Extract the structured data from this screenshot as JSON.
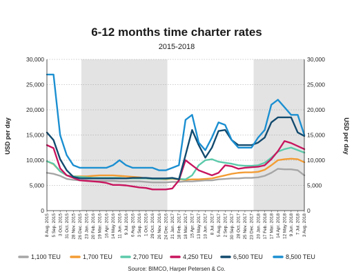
{
  "chart_data": {
    "type": "line",
    "title": "6-12 months time charter rates",
    "subtitle": "2015-2018",
    "ylabel_left": "USD per day",
    "ylabel_right": "USD per day",
    "source": "Source: BIMCO, Harper Petersen & Co.",
    "ylim": [
      0,
      30000
    ],
    "yticks": [
      0,
      5000,
      10000,
      15000,
      20000,
      25000,
      30000
    ],
    "ytick_labels": [
      "0",
      "5,000",
      "10,000",
      "15,000",
      "20,000",
      "25,000",
      "30,000"
    ],
    "grid": "horizontal dotted",
    "legend_placement": "bottom",
    "x_dates": [
      "2015-08-08",
      "2015-09-05",
      "2015-10-03",
      "2015-10-31",
      "2015-11-28",
      "2015-12-26",
      "2016-01-23",
      "2016-02-20",
      "2016-03-19",
      "2016-04-16",
      "2016-05-14",
      "2016-06-11",
      "2016-07-09",
      "2016-08-06",
      "2016-09-03",
      "2016-10-01",
      "2016-10-29",
      "2016-11-26",
      "2016-12-24",
      "2017-01-21",
      "2017-02-18",
      "2017-03-18",
      "2017-04-15",
      "2017-05-13",
      "2017-06-10",
      "2017-07-08",
      "2017-08-05",
      "2017-09-02",
      "2017-09-30",
      "2017-10-28",
      "2017-11-25",
      "2017-12-23",
      "2018-01-20",
      "2018-02-17",
      "2018-03-17",
      "2018-04-14",
      "2018-05-12",
      "2018-06-09",
      "2018-07-07",
      "2018-08-04"
    ],
    "x_tick_labels": [
      "8 Aug. 2015",
      "5 Sep. 2015",
      "3 Oct. 2015",
      "31 Oct. 2015",
      "28 Nov. 2015",
      "26 Dec. 2015",
      "23 Jan. 2016",
      "20 Feb. 2016",
      "19 Mar. 2016",
      "16 Apr. 2016",
      "14 May 2016",
      "11 Jun. 2016",
      "9 Jul. 2016",
      "6 Aug. 2016",
      "3 Sep. 2016",
      "1 Oct. 2016",
      "29 Oct. 2016",
      "26 Nov. 2016",
      "24 Dec. 2016",
      "21 Jan. 2017",
      "18 Feb. 2017",
      "18 Mar. 2017",
      "15 Apr. 2017",
      "13 May 2017",
      "10 Jun. 2017",
      "8 Jul. 2017",
      "5 Aug. 2017",
      "2 Sep. 2017",
      "30 Sep. 2017",
      "28 Oct. 2017",
      "25 Nov. 2017",
      "23 Dec. 2017",
      "20 Jan. 2018",
      "17 Feb. 2018",
      "17 Mar. 2018",
      "14 Apr. 2018",
      "12 May 2018",
      "9 Jun. 2018",
      "7 Jul. 2018",
      "3 Aug. 2018"
    ],
    "shaded_years": [
      {
        "label": "2016",
        "from": "2016-01-01",
        "to": "2016-12-31",
        "color": "#e3e3e3"
      },
      {
        "label": "2018",
        "from": "2018-01-01",
        "to": "2018-08-04",
        "color": "#e3e3e3"
      }
    ],
    "series": [
      {
        "name": "1,100 TEU",
        "color": "#a6a6a6",
        "values": [
          7500,
          7300,
          6900,
          6300,
          6100,
          6000,
          6000,
          5900,
          5900,
          5900,
          5900,
          5800,
          5800,
          5800,
          5800,
          5700,
          5600,
          5600,
          5600,
          5700,
          5700,
          5800,
          5800,
          5900,
          6000,
          6000,
          6200,
          6300,
          6400,
          6400,
          6500,
          6500,
          6600,
          6900,
          7500,
          8300,
          8200,
          8200,
          8000,
          7000
        ]
      },
      {
        "name": "1,700 TEU",
        "color": "#f39c34",
        "values": [
          9800,
          9200,
          7800,
          7000,
          6800,
          6800,
          6800,
          6900,
          7000,
          7000,
          7000,
          6900,
          6800,
          6700,
          6600,
          6400,
          6300,
          6300,
          6200,
          6300,
          6200,
          6100,
          6200,
          6200,
          6300,
          6400,
          6700,
          7000,
          7300,
          7500,
          7600,
          7600,
          7700,
          8100,
          9000,
          10000,
          10200,
          10300,
          10200,
          9600
        ]
      },
      {
        "name": "2,700 TEU",
        "color": "#5ccaaa",
        "values": [
          9800,
          9300,
          7800,
          7000,
          6800,
          6700,
          6600,
          6500,
          6500,
          6500,
          6500,
          6500,
          6400,
          6400,
          6400,
          6400,
          6300,
          6300,
          6300,
          6400,
          6300,
          6200,
          7000,
          9000,
          10000,
          10200,
          9700,
          9500,
          9300,
          9000,
          8900,
          8900,
          9000,
          9500,
          10500,
          11700,
          12200,
          12500,
          12000,
          11500
        ]
      },
      {
        "name": "4,250 TEU",
        "color": "#c8155e",
        "values": [
          13000,
          12400,
          8400,
          7000,
          6500,
          6000,
          5900,
          5800,
          5700,
          5500,
          5100,
          5100,
          5000,
          4800,
          4600,
          4500,
          4200,
          4200,
          4200,
          4400,
          6000,
          10000,
          9000,
          8000,
          7500,
          7000,
          7500,
          9000,
          8800,
          8300,
          8500,
          8600,
          8700,
          9000,
          10200,
          11800,
          13800,
          13400,
          12800,
          12200
        ]
      },
      {
        "name": "6,500 TEU",
        "color": "#124a6e",
        "values": [
          15500,
          14000,
          10200,
          8000,
          6700,
          6400,
          6400,
          6400,
          6400,
          6400,
          6400,
          6400,
          6400,
          6500,
          6500,
          6500,
          6400,
          6400,
          6400,
          6500,
          6200,
          11000,
          16000,
          13000,
          10500,
          12500,
          15800,
          16000,
          14000,
          13000,
          13000,
          13000,
          13500,
          14500,
          17500,
          18500,
          18500,
          18500,
          15500,
          14800
        ]
      },
      {
        "name": "8,500 TEU",
        "color": "#1b8fd1",
        "values": [
          27000,
          27000,
          15000,
          11000,
          9000,
          8500,
          8500,
          8500,
          8500,
          8500,
          9000,
          10000,
          9000,
          8500,
          8500,
          8500,
          8500,
          8000,
          8000,
          8500,
          9000,
          18000,
          19000,
          13500,
          12000,
          14500,
          17500,
          17000,
          14000,
          12500,
          12500,
          12500,
          14500,
          16000,
          21000,
          22000,
          20500,
          19000,
          19000,
          15000
        ]
      }
    ]
  }
}
